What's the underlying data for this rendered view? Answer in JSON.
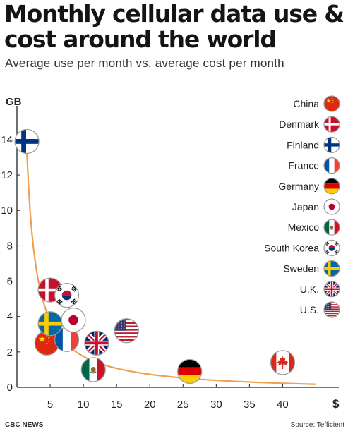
{
  "header": {
    "title": "Monthly cellular data use & cost around the world",
    "subtitle": "Average use per month vs. average cost per month"
  },
  "footer": {
    "source_left": "CBC NEWS",
    "source_right": "Source: Tefficient"
  },
  "colors": {
    "curve": "#f0a050",
    "axis": "#222222"
  },
  "chart_data": {
    "type": "scatter",
    "title": "Monthly cellular data use & cost around the world",
    "subtitle": "Average use per month vs. average cost per month",
    "xlabel": "$",
    "ylabel": "GB",
    "xlim": [
      0,
      45
    ],
    "ylim": [
      0,
      15.5
    ],
    "x_ticks": [
      5,
      10,
      15,
      20,
      25,
      30,
      35,
      40
    ],
    "x_tick_labels": [
      "5",
      "10",
      "15",
      "20",
      "25",
      "30",
      "35",
      "40"
    ],
    "y_ticks": [
      0,
      2,
      4,
      6,
      8,
      10,
      12,
      14
    ],
    "y_tick_labels": [
      "0",
      "2",
      "4",
      "6",
      "8",
      "10",
      "12",
      "14"
    ],
    "grid": false,
    "legend_position": "top-right",
    "trend_curve": "orange fitted decreasing curve",
    "points": [
      {
        "country": "Finland",
        "flag": "finland-flag",
        "x": 1.5,
        "y": 13.9
      },
      {
        "country": "Denmark",
        "flag": "denmark-flag",
        "x": 5.0,
        "y": 5.5
      },
      {
        "country": "South Korea",
        "flag": "south-korea-flag",
        "x": 7.5,
        "y": 5.2
      },
      {
        "country": "Sweden",
        "flag": "sweden-flag",
        "x": 5.0,
        "y": 3.6
      },
      {
        "country": "Japan",
        "flag": "japan-flag",
        "x": 8.5,
        "y": 3.8
      },
      {
        "country": "France",
        "flag": "france-flag",
        "x": 7.5,
        "y": 2.7
      },
      {
        "country": "China",
        "flag": "china-flag",
        "x": 4.5,
        "y": 2.5
      },
      {
        "country": "U.K.",
        "flag": "uk-flag",
        "x": 12.0,
        "y": 2.5
      },
      {
        "country": "U.S.",
        "flag": "us-flag",
        "x": 16.5,
        "y": 3.2
      },
      {
        "country": "Mexico",
        "flag": "mexico-flag",
        "x": 11.5,
        "y": 1.0
      },
      {
        "country": "Germany",
        "flag": "germany-flag",
        "x": 26.0,
        "y": 0.9
      },
      {
        "country": "Canada",
        "flag": "canada-flag",
        "x": 40.0,
        "y": 1.4
      }
    ],
    "legend": [
      {
        "label": "China",
        "flag": "china-flag"
      },
      {
        "label": "Denmark",
        "flag": "denmark-flag"
      },
      {
        "label": "Finland",
        "flag": "finland-flag"
      },
      {
        "label": "France",
        "flag": "france-flag"
      },
      {
        "label": "Germany",
        "flag": "germany-flag"
      },
      {
        "label": "Japan",
        "flag": "japan-flag"
      },
      {
        "label": "Mexico",
        "flag": "mexico-flag"
      },
      {
        "label": "South Korea",
        "flag": "south-korea-flag"
      },
      {
        "label": "Sweden",
        "flag": "sweden-flag"
      },
      {
        "label": "U.K.",
        "flag": "uk-flag"
      },
      {
        "label": "U.S.",
        "flag": "us-flag"
      }
    ]
  }
}
